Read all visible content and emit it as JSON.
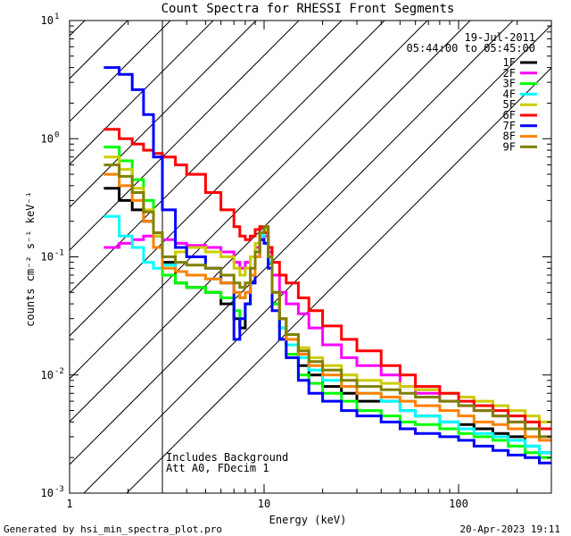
{
  "chart_data": {
    "type": "line",
    "title": "Count Spectra for RHESSI Front Segments",
    "xlabel": "Energy (keV)",
    "ylabel": "counts cm⁻² s⁻¹ keV⁻¹",
    "xscale": "log",
    "yscale": "log",
    "xlim": [
      1,
      300
    ],
    "ylim": [
      0.001,
      10
    ],
    "x_tick_labels": [
      {
        "value": 1,
        "label": "1"
      },
      {
        "value": 10,
        "label": "10"
      },
      {
        "value": 100,
        "label": "100"
      }
    ],
    "y_tick_labels": [
      {
        "value": 0.001,
        "base": "10",
        "exp": "-3"
      },
      {
        "value": 0.01,
        "base": "10",
        "exp": "-2"
      },
      {
        "value": 0.1,
        "base": "10",
        "exp": "-1"
      },
      {
        "value": 1,
        "base": "10",
        "exp": "0"
      },
      {
        "value": 10,
        "base": "10",
        "exp": "1"
      }
    ],
    "date": "19-Jul-2011",
    "time_range": "05:44:00 to 05:45:00",
    "annotations": [
      "Includes Background",
      "Att A0, FDecim 1"
    ],
    "excluded_below_keV": 3,
    "energy_edges": [
      1.5,
      1.8,
      2.1,
      2.4,
      2.7,
      3.0,
      3.5,
      4.0,
      5.0,
      6.0,
      7.0,
      7.5,
      8.0,
      8.5,
      9.0,
      9.5,
      10.0,
      10.5,
      11.0,
      12.0,
      13.0,
      15.0,
      17.0,
      20.0,
      25.0,
      30.0,
      40.0,
      50.0,
      60.0,
      80.0,
      100.0,
      120.0,
      150.0,
      180.0,
      220.0,
      260.0,
      300.0
    ],
    "series": [
      {
        "name": "1F",
        "color": "#000000",
        "values": [
          0.38,
          0.3,
          0.25,
          0.2,
          0.12,
          0.09,
          0.06,
          0.055,
          0.05,
          0.04,
          0.03,
          0.025,
          0.04,
          0.06,
          0.1,
          0.15,
          0.16,
          0.1,
          0.04,
          0.025,
          0.018,
          0.012,
          0.01,
          0.008,
          0.007,
          0.006,
          0.006,
          0.005,
          0.0045,
          0.004,
          0.0038,
          0.0035,
          0.0032,
          0.003,
          0.0025,
          0.0022
        ]
      },
      {
        "name": "2F",
        "color": "#ff00ff",
        "values": [
          0.12,
          0.13,
          0.14,
          0.15,
          0.15,
          0.14,
          0.13,
          0.125,
          0.12,
          0.11,
          0.09,
          0.08,
          0.09,
          0.1,
          0.12,
          0.14,
          0.15,
          0.11,
          0.07,
          0.05,
          0.04,
          0.033,
          0.025,
          0.018,
          0.014,
          0.012,
          0.01,
          0.008,
          0.007,
          0.006,
          0.0055,
          0.005,
          0.0045,
          0.004,
          0.0035,
          0.003
        ]
      },
      {
        "name": "3F",
        "color": "#00ff00",
        "values": [
          0.85,
          0.65,
          0.45,
          0.3,
          0.15,
          0.07,
          0.06,
          0.055,
          0.05,
          0.045,
          0.035,
          0.03,
          0.04,
          0.06,
          0.1,
          0.15,
          0.17,
          0.09,
          0.04,
          0.02,
          0.015,
          0.01,
          0.0085,
          0.007,
          0.006,
          0.005,
          0.0045,
          0.004,
          0.0038,
          0.0035,
          0.0032,
          0.003,
          0.0028,
          0.0025,
          0.0022,
          0.002
        ]
      },
      {
        "name": "4F",
        "color": "#00ffff",
        "values": [
          0.22,
          0.15,
          0.12,
          0.09,
          0.08,
          0.085,
          0.075,
          0.07,
          0.065,
          0.06,
          0.05,
          0.045,
          0.05,
          0.07,
          0.1,
          0.15,
          0.16,
          0.09,
          0.05,
          0.025,
          0.018,
          0.014,
          0.011,
          0.009,
          0.008,
          0.007,
          0.006,
          0.005,
          0.0045,
          0.004,
          0.0035,
          0.0032,
          0.003,
          0.0028,
          0.0025,
          0.0022
        ]
      },
      {
        "name": "5F",
        "color": "#cccc00",
        "values": [
          0.7,
          0.55,
          0.38,
          0.25,
          0.15,
          0.1,
          0.11,
          0.12,
          0.11,
          0.1,
          0.08,
          0.07,
          0.08,
          0.1,
          0.13,
          0.16,
          0.17,
          0.1,
          0.05,
          0.03,
          0.022,
          0.017,
          0.014,
          0.012,
          0.01,
          0.009,
          0.0085,
          0.008,
          0.0075,
          0.007,
          0.0065,
          0.006,
          0.0055,
          0.005,
          0.0045,
          0.004
        ]
      },
      {
        "name": "6F",
        "color": "#ff0000",
        "values": [
          1.2,
          1.0,
          0.9,
          0.8,
          0.75,
          0.7,
          0.6,
          0.5,
          0.35,
          0.25,
          0.18,
          0.15,
          0.14,
          0.15,
          0.17,
          0.18,
          0.16,
          0.12,
          0.09,
          0.07,
          0.06,
          0.045,
          0.035,
          0.026,
          0.02,
          0.016,
          0.012,
          0.01,
          0.008,
          0.007,
          0.006,
          0.0055,
          0.005,
          0.0045,
          0.004,
          0.0035
        ]
      },
      {
        "name": "7F",
        "color": "#0000ff",
        "values": [
          4.0,
          3.5,
          2.6,
          1.6,
          0.7,
          0.25,
          0.12,
          0.1,
          0.08,
          0.06,
          0.02,
          0.03,
          0.04,
          0.06,
          0.1,
          0.14,
          0.13,
          0.08,
          0.035,
          0.02,
          0.014,
          0.009,
          0.007,
          0.006,
          0.005,
          0.0045,
          0.004,
          0.0035,
          0.0032,
          0.003,
          0.0028,
          0.0025,
          0.0023,
          0.0021,
          0.002,
          0.0018
        ]
      },
      {
        "name": "8F",
        "color": "#ff8000",
        "values": [
          0.5,
          0.4,
          0.3,
          0.2,
          0.12,
          0.08,
          0.075,
          0.07,
          0.065,
          0.06,
          0.05,
          0.045,
          0.05,
          0.07,
          0.1,
          0.16,
          0.18,
          0.1,
          0.05,
          0.03,
          0.02,
          0.015,
          0.012,
          0.01,
          0.008,
          0.007,
          0.0065,
          0.006,
          0.0055,
          0.005,
          0.0045,
          0.004,
          0.0038,
          0.0035,
          0.003,
          0.0028
        ]
      },
      {
        "name": "9F",
        "color": "#808000",
        "values": [
          0.6,
          0.48,
          0.35,
          0.24,
          0.16,
          0.1,
          0.09,
          0.085,
          0.08,
          0.07,
          0.06,
          0.055,
          0.06,
          0.08,
          0.11,
          0.16,
          0.18,
          0.1,
          0.05,
          0.03,
          0.022,
          0.016,
          0.013,
          0.011,
          0.009,
          0.008,
          0.0075,
          0.007,
          0.0065,
          0.006,
          0.0055,
          0.005,
          0.0045,
          0.004,
          0.0035,
          0.003
        ]
      }
    ]
  },
  "footer": {
    "generator": "Generated by hsi_min_spectra_plot.pro",
    "timestamp": "20-Apr-2023 19:11"
  }
}
